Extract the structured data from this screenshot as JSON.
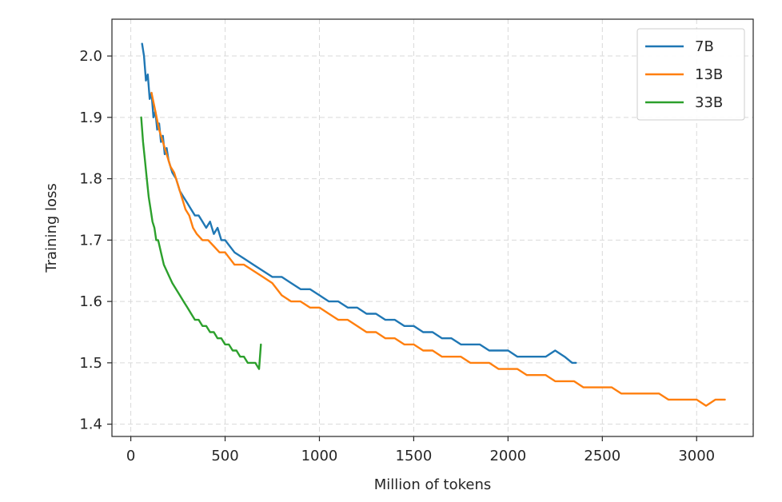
{
  "chart_data": {
    "type": "line",
    "title": "",
    "xlabel": "Million of tokens",
    "ylabel": "Training loss",
    "xlim": [
      -100,
      3300
    ],
    "ylim": [
      1.38,
      2.06
    ],
    "xticks": [
      0,
      500,
      1000,
      1500,
      2000,
      2500,
      3000
    ],
    "yticks": [
      1.4,
      1.5,
      1.6,
      1.7,
      1.8,
      1.9,
      2.0
    ],
    "xtick_labels": [
      "0",
      "500",
      "1000",
      "1500",
      "2000",
      "2500",
      "3000"
    ],
    "ytick_labels": [
      "1.4",
      "1.5",
      "1.6",
      "1.7",
      "1.8",
      "1.9",
      "2.0"
    ],
    "grid": true,
    "legend_position": "top-right",
    "series": [
      {
        "name": "7B",
        "color": "#1f77b4",
        "x": [
          60,
          70,
          80,
          90,
          100,
          110,
          120,
          130,
          140,
          150,
          160,
          170,
          180,
          190,
          200,
          220,
          240,
          260,
          280,
          300,
          320,
          340,
          360,
          380,
          400,
          420,
          440,
          460,
          480,
          500,
          550,
          600,
          650,
          700,
          750,
          800,
          850,
          900,
          950,
          1000,
          1050,
          1100,
          1150,
          1200,
          1250,
          1300,
          1350,
          1400,
          1450,
          1500,
          1550,
          1600,
          1650,
          1700,
          1750,
          1800,
          1850,
          1900,
          1950,
          2000,
          2050,
          2100,
          2150,
          2200,
          2250,
          2300,
          2340,
          2360
        ],
        "values": [
          2.02,
          2.0,
          1.96,
          1.97,
          1.93,
          1.94,
          1.9,
          1.91,
          1.88,
          1.89,
          1.86,
          1.87,
          1.84,
          1.85,
          1.83,
          1.81,
          1.8,
          1.78,
          1.77,
          1.76,
          1.75,
          1.74,
          1.74,
          1.73,
          1.72,
          1.73,
          1.71,
          1.72,
          1.7,
          1.7,
          1.68,
          1.67,
          1.66,
          1.65,
          1.64,
          1.64,
          1.63,
          1.62,
          1.62,
          1.61,
          1.6,
          1.6,
          1.59,
          1.59,
          1.58,
          1.58,
          1.57,
          1.57,
          1.56,
          1.56,
          1.55,
          1.55,
          1.54,
          1.54,
          1.53,
          1.53,
          1.53,
          1.52,
          1.52,
          1.52,
          1.51,
          1.51,
          1.51,
          1.51,
          1.52,
          1.51,
          1.5,
          1.5
        ]
      },
      {
        "name": "13B",
        "color": "#ff7f0e",
        "x": [
          110,
          130,
          150,
          170,
          190,
          210,
          230,
          250,
          270,
          290,
          310,
          330,
          350,
          380,
          410,
          440,
          470,
          500,
          550,
          600,
          650,
          700,
          750,
          800,
          850,
          900,
          950,
          1000,
          1050,
          1100,
          1150,
          1200,
          1250,
          1300,
          1350,
          1400,
          1450,
          1500,
          1550,
          1600,
          1650,
          1700,
          1750,
          1800,
          1850,
          1900,
          1950,
          2000,
          2050,
          2100,
          2150,
          2200,
          2250,
          2300,
          2350,
          2400,
          2450,
          2500,
          2550,
          2600,
          2650,
          2700,
          2750,
          2800,
          2850,
          2900,
          2950,
          3000,
          3050,
          3100,
          3150
        ],
        "values": [
          1.94,
          1.91,
          1.88,
          1.86,
          1.84,
          1.82,
          1.81,
          1.79,
          1.77,
          1.75,
          1.74,
          1.72,
          1.71,
          1.7,
          1.7,
          1.69,
          1.68,
          1.68,
          1.66,
          1.66,
          1.65,
          1.64,
          1.63,
          1.61,
          1.6,
          1.6,
          1.59,
          1.59,
          1.58,
          1.57,
          1.57,
          1.56,
          1.55,
          1.55,
          1.54,
          1.54,
          1.53,
          1.53,
          1.52,
          1.52,
          1.51,
          1.51,
          1.51,
          1.5,
          1.5,
          1.5,
          1.49,
          1.49,
          1.49,
          1.48,
          1.48,
          1.48,
          1.47,
          1.47,
          1.47,
          1.46,
          1.46,
          1.46,
          1.46,
          1.45,
          1.45,
          1.45,
          1.45,
          1.45,
          1.44,
          1.44,
          1.44,
          1.44,
          1.43,
          1.44,
          1.44
        ]
      },
      {
        "name": "33B",
        "color": "#2ca02c",
        "x": [
          55,
          65,
          75,
          85,
          95,
          105,
          115,
          125,
          135,
          145,
          160,
          175,
          190,
          205,
          220,
          240,
          260,
          280,
          300,
          320,
          340,
          360,
          380,
          400,
          420,
          440,
          460,
          480,
          500,
          520,
          540,
          560,
          580,
          600,
          620,
          640,
          660,
          680,
          690
        ],
        "values": [
          1.9,
          1.86,
          1.83,
          1.8,
          1.77,
          1.75,
          1.73,
          1.72,
          1.7,
          1.7,
          1.68,
          1.66,
          1.65,
          1.64,
          1.63,
          1.62,
          1.61,
          1.6,
          1.59,
          1.58,
          1.57,
          1.57,
          1.56,
          1.56,
          1.55,
          1.55,
          1.54,
          1.54,
          1.53,
          1.53,
          1.52,
          1.52,
          1.51,
          1.51,
          1.5,
          1.5,
          1.5,
          1.49,
          1.53
        ]
      }
    ]
  }
}
